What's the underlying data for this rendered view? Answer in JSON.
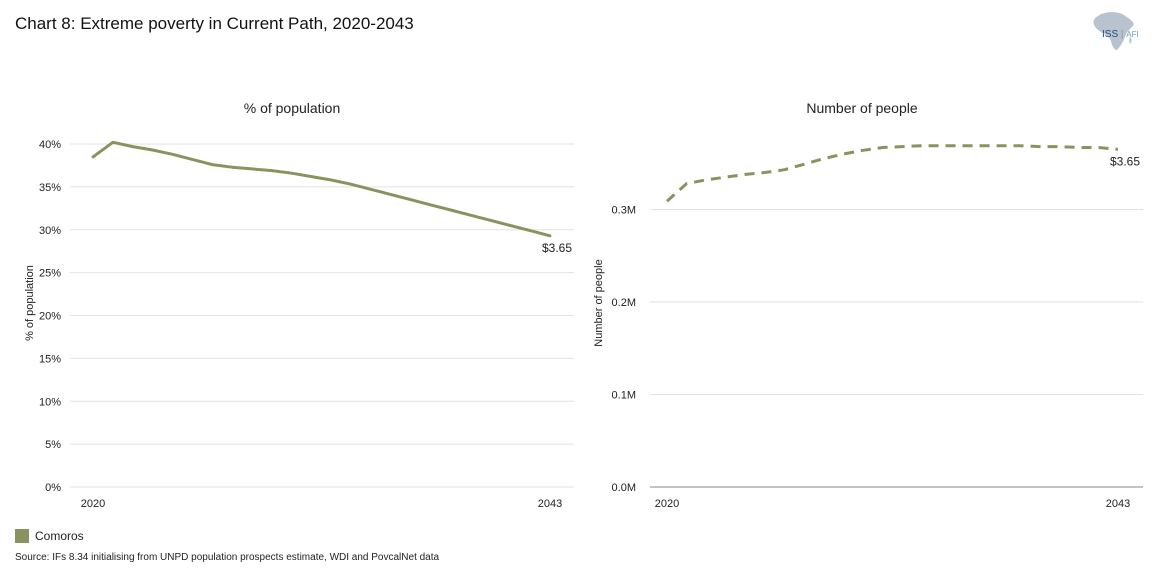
{
  "title": "Chart 8: Extreme poverty in Current Path, 2020-2043",
  "logo": {
    "brand": "ISS",
    "sub": "AFI"
  },
  "colors": {
    "series": "#8a9360",
    "grid": "#e2e2e2",
    "axis": "#888888"
  },
  "legend": {
    "label": "Comoros"
  },
  "source": "Source: IFs 8.34 initialising from UNPD population prospects estimate, WDI and PovcalNet data",
  "chart_data": [
    {
      "type": "line",
      "title": "% of population",
      "ylabel": "% of population",
      "xlim": [
        2020,
        2043
      ],
      "ylim": [
        0,
        40
      ],
      "yticks": [
        0,
        5,
        10,
        15,
        20,
        25,
        30,
        35,
        40
      ],
      "ytick_labels": [
        "0%",
        "5%",
        "10%",
        "15%",
        "20%",
        "25%",
        "30%",
        "35%",
        "40%"
      ],
      "xtick_labels": [
        "2020",
        "2043"
      ],
      "line_style": "solid",
      "end_label": "$3.65",
      "series": [
        {
          "name": "Comoros",
          "x": [
            2020,
            2021,
            2022,
            2023,
            2024,
            2025,
            2026,
            2027,
            2028,
            2029,
            2030,
            2031,
            2032,
            2033,
            2034,
            2035,
            2036,
            2037,
            2038,
            2039,
            2040,
            2041,
            2042,
            2043
          ],
          "values": [
            38.5,
            40.2,
            39.7,
            39.3,
            38.8,
            38.2,
            37.6,
            37.3,
            37.1,
            36.9,
            36.6,
            36.2,
            35.8,
            35.3,
            34.7,
            34.1,
            33.5,
            32.9,
            32.3,
            31.7,
            31.1,
            30.5,
            29.9,
            29.3
          ]
        }
      ]
    },
    {
      "type": "line",
      "title": "Number of people",
      "ylabel": "Number of people",
      "xlim": [
        2020,
        2043
      ],
      "ylim": [
        0,
        0.4
      ],
      "yticks": [
        0,
        0.1,
        0.2,
        0.3
      ],
      "ytick_labels": [
        "0.0M",
        "0.1M",
        "0.2M",
        "0.3M"
      ],
      "xtick_labels": [
        "2020",
        "2043"
      ],
      "line_style": "dashed",
      "end_label": "$3.65",
      "series": [
        {
          "name": "Comoros",
          "x": [
            2020,
            2021,
            2022,
            2023,
            2024,
            2025,
            2026,
            2027,
            2028,
            2029,
            2030,
            2031,
            2032,
            2033,
            2034,
            2035,
            2036,
            2037,
            2038,
            2039,
            2040,
            2041,
            2042,
            2043
          ],
          "values": [
            0.309,
            0.328,
            0.332,
            0.335,
            0.338,
            0.34,
            0.343,
            0.349,
            0.355,
            0.36,
            0.364,
            0.367,
            0.368,
            0.369,
            0.369,
            0.369,
            0.369,
            0.369,
            0.369,
            0.368,
            0.368,
            0.367,
            0.367,
            0.365
          ]
        }
      ]
    }
  ]
}
